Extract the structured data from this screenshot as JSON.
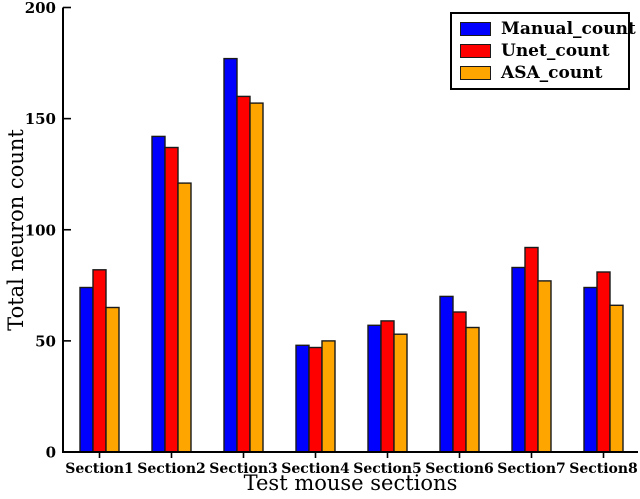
{
  "figure": {
    "background": "#ffffff",
    "axis_color": "#000000"
  },
  "chart_data": {
    "type": "bar",
    "title": "",
    "xlabel": "Test mouse sections",
    "ylabel": "Total neuron count",
    "categories": [
      "Section1",
      "Section2",
      "Section3",
      "Section4",
      "Section5",
      "Section6",
      "Section7",
      "Section8"
    ],
    "series": [
      {
        "name": "Manual_count",
        "color": "#0000ff",
        "values": [
          74,
          142,
          177,
          48,
          57,
          70,
          83,
          74
        ]
      },
      {
        "name": "Unet_count",
        "color": "#ff0000",
        "values": [
          82,
          137,
          160,
          47,
          59,
          63,
          92,
          81
        ]
      },
      {
        "name": "ASA_count",
        "color": "#ffa500",
        "values": [
          65,
          121,
          157,
          50,
          53,
          56,
          77,
          66
        ]
      }
    ],
    "ylim": [
      0,
      200
    ],
    "yticks": [
      0,
      50,
      100,
      150,
      200
    ],
    "grid": false,
    "legend_position": "top-right",
    "bar_edge_color": "#1a1a1a"
  }
}
